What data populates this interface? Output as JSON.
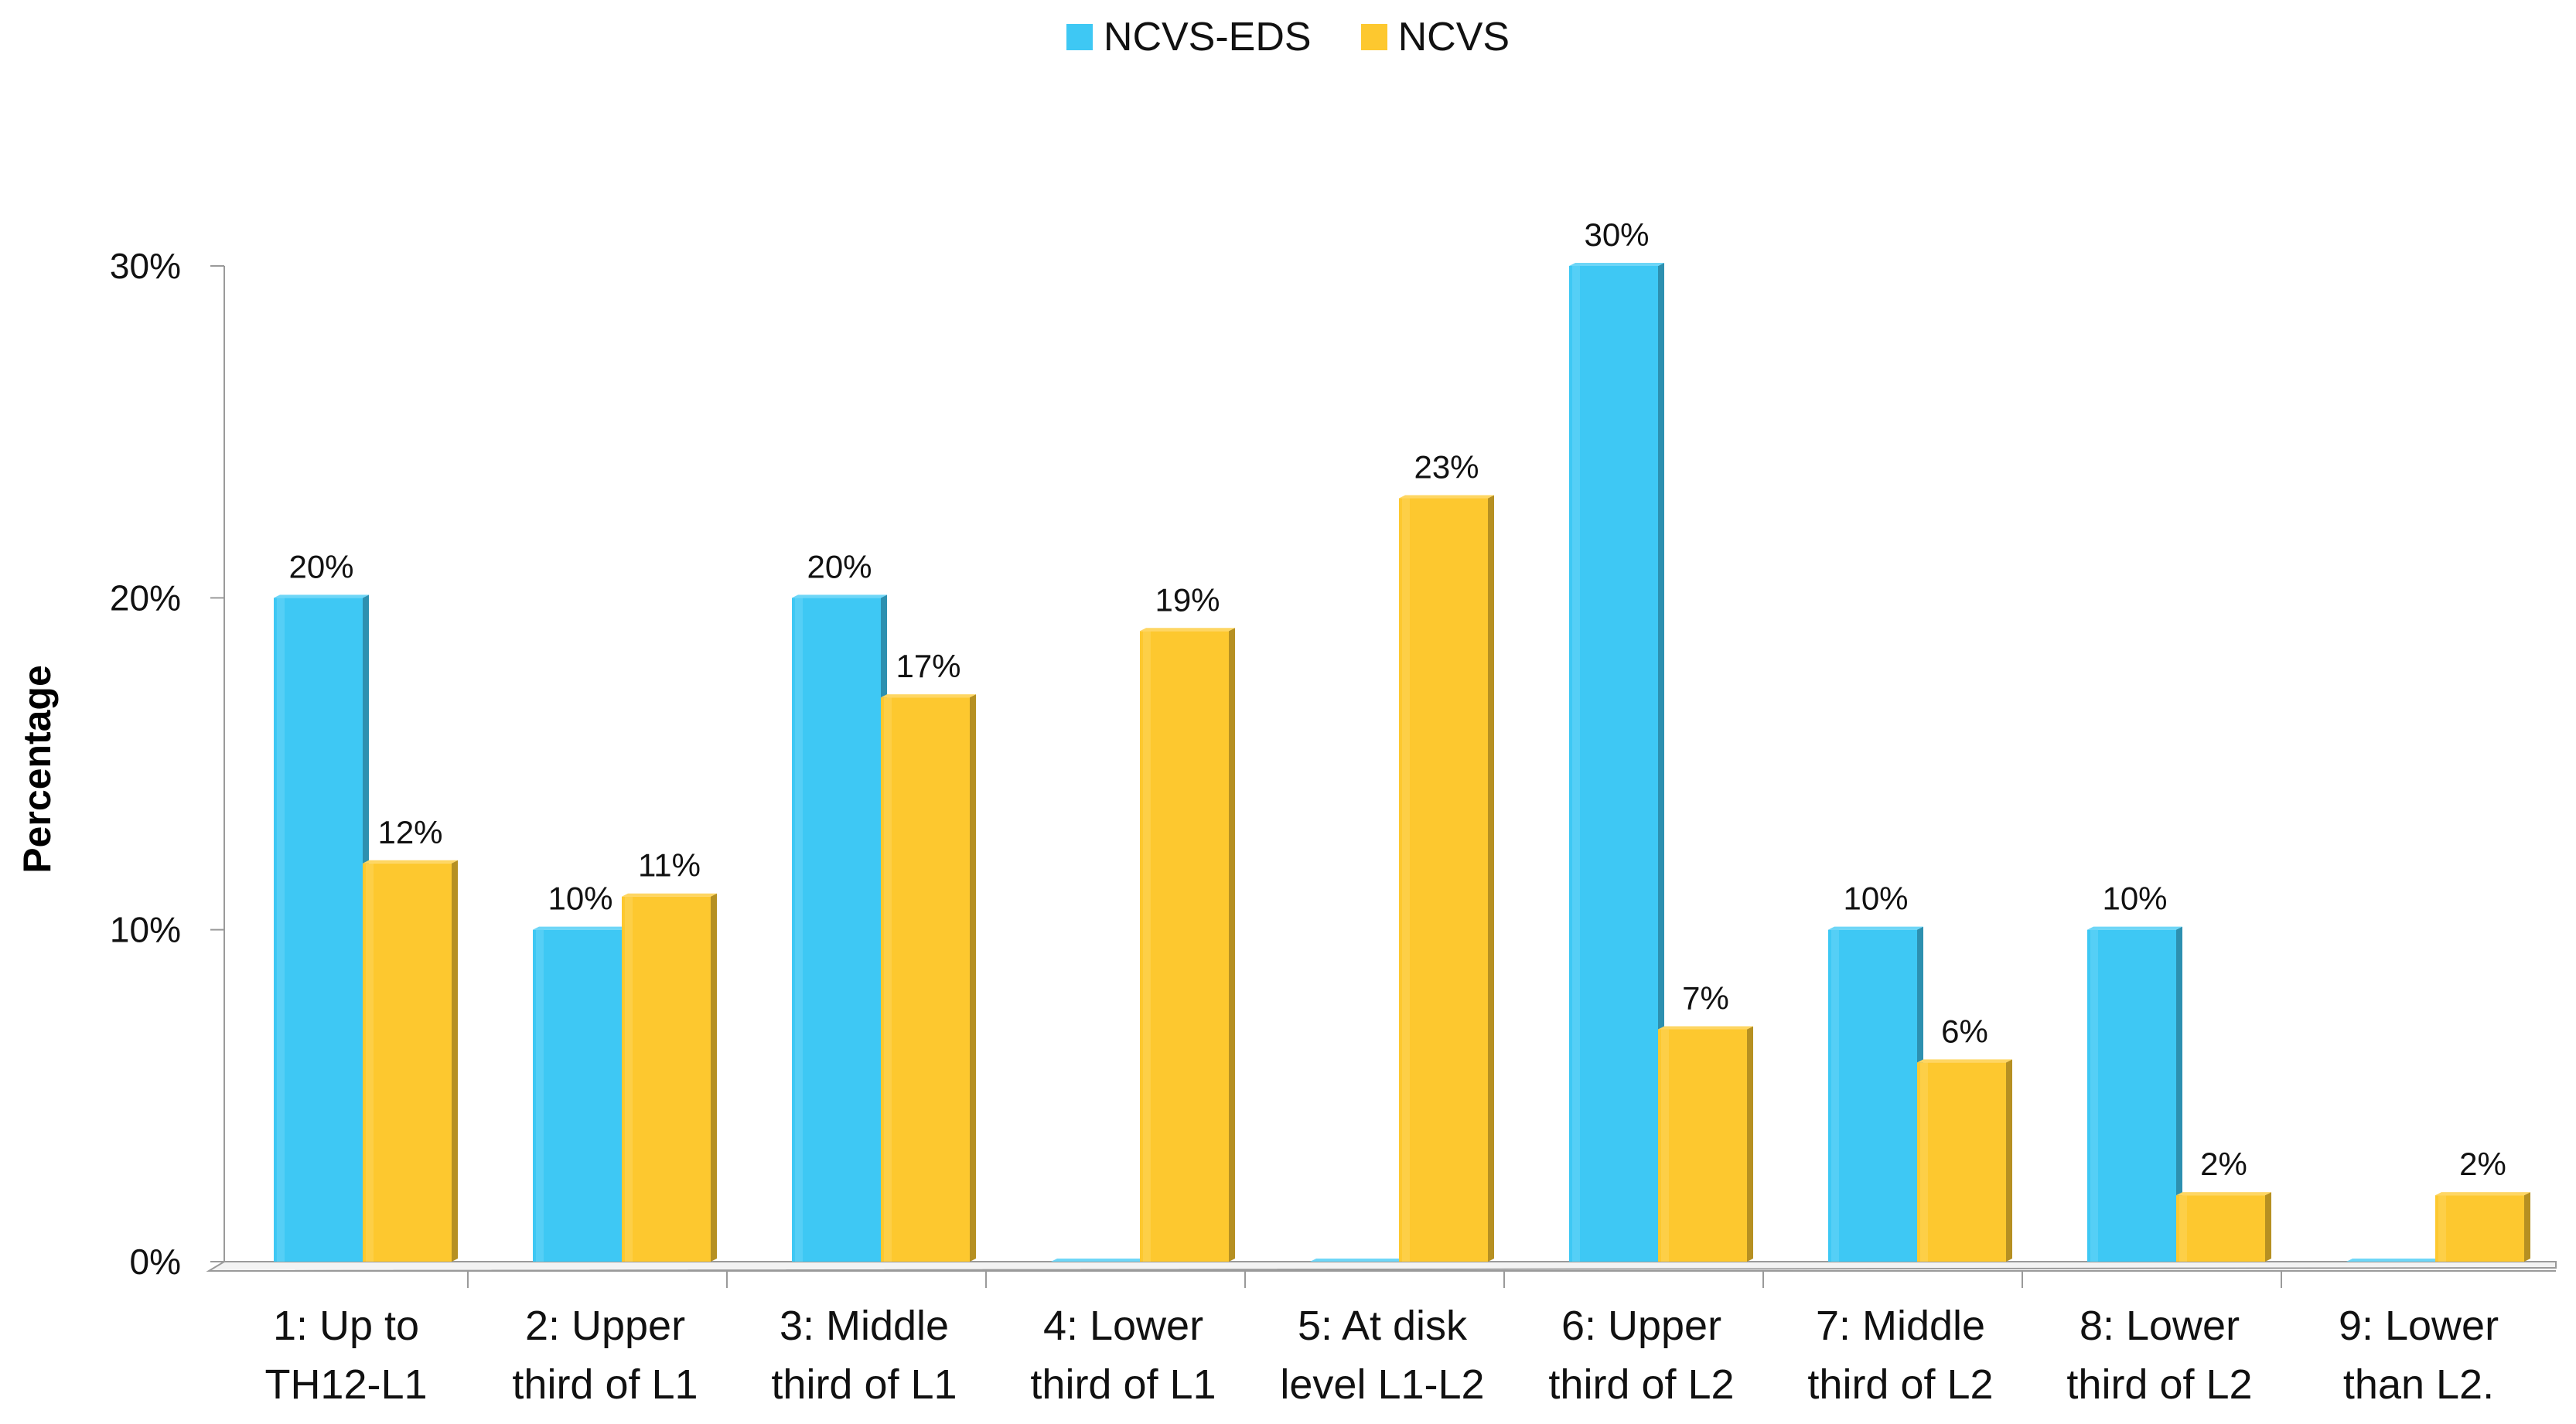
{
  "chart_data": {
    "type": "bar",
    "title": "",
    "xlabel": "",
    "ylabel": "Percentage",
    "ylim": [
      0,
      30
    ],
    "yticks": [
      0,
      10,
      20,
      30
    ],
    "ytick_labels": [
      "0%",
      "10%",
      "20%",
      "30%"
    ],
    "legend_position": "top-center",
    "categories": [
      [
        "1: Up to",
        "TH12-L1"
      ],
      [
        "2: Upper",
        "third of L1"
      ],
      [
        "3: Middle",
        "third of L1"
      ],
      [
        "4: Lower",
        "third of L1"
      ],
      [
        "5: At disk",
        "level L1-L2"
      ],
      [
        "6: Upper",
        "third of L2"
      ],
      [
        "7: Middle",
        "third of L2"
      ],
      [
        "8: Lower",
        "third of L2"
      ],
      [
        "9: Lower",
        "than L2."
      ]
    ],
    "series": [
      {
        "name": "NCVS-EDS",
        "color": "#3ec8f4",
        "values": [
          20,
          10,
          20,
          0,
          0,
          30,
          10,
          10,
          0
        ],
        "labels": [
          "20%",
          "10%",
          "20%",
          "",
          "",
          "30%",
          "10%",
          "10%",
          ""
        ]
      },
      {
        "name": "NCVS",
        "color": "#fdc82f",
        "values": [
          12,
          11,
          17,
          19,
          23,
          7,
          6,
          2,
          2
        ],
        "labels": [
          "12%",
          "11%",
          "17%",
          "19%",
          "23%",
          "7%",
          "6%",
          "2%",
          "2%"
        ]
      }
    ]
  }
}
